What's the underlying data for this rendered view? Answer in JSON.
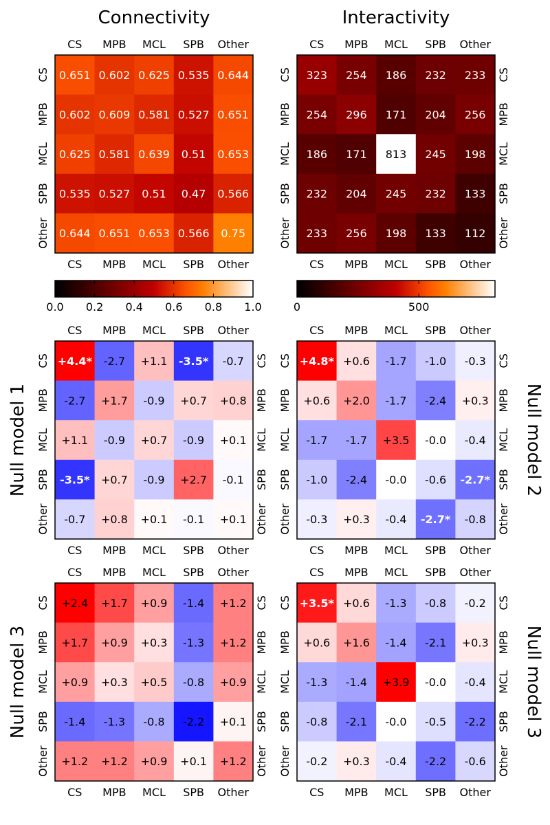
{
  "labels": {
    "connectivity_title": "Connectivity",
    "interactivity_title": "Interactivity",
    "null_model_1": "Null model 1",
    "null_model_2": "Null model 2",
    "null_model_3_left": "Null model 3",
    "null_model_3_right": "Null model 3"
  },
  "colors": {
    "positive": "#ff0000",
    "negative": "#0000ff",
    "neutral": "#ffffff",
    "text_dark": "#000000",
    "text_light": "#ffffff"
  },
  "chart_data": [
    {
      "id": "connectivity",
      "type": "heatmap",
      "title": "Connectivity",
      "colormap": "gist_heat",
      "categories": [
        "CS",
        "MPB",
        "MCL",
        "SPB",
        "Other"
      ],
      "values": [
        [
          0.651,
          0.602,
          0.625,
          0.535,
          0.644
        ],
        [
          0.602,
          0.609,
          0.581,
          0.527,
          0.651
        ],
        [
          0.625,
          0.581,
          0.639,
          0.51,
          0.653
        ],
        [
          0.535,
          0.527,
          0.51,
          0.47,
          0.566
        ],
        [
          0.644,
          0.651,
          0.653,
          0.566,
          0.75
        ]
      ],
      "labels": [
        [
          "0.651",
          "0.602",
          "0.625",
          "0.535",
          "0.644"
        ],
        [
          "0.602",
          "0.609",
          "0.581",
          "0.527",
          "0.651"
        ],
        [
          "0.625",
          "0.581",
          "0.639",
          "0.51",
          "0.653"
        ],
        [
          "0.535",
          "0.527",
          "0.51",
          "0.47",
          "0.566"
        ],
        [
          "0.644",
          "0.651",
          "0.653",
          "0.566",
          "0.75"
        ]
      ],
      "vmin": 0.0,
      "vmax": 1.0,
      "colorbar_ticks": [
        0.0,
        0.2,
        0.4,
        0.6,
        0.8,
        1.0
      ],
      "colorbar_tick_labels": [
        "0.0",
        "0.2",
        "0.4",
        "0.6",
        "0.8",
        "1.0"
      ]
    },
    {
      "id": "interactivity",
      "type": "heatmap",
      "title": "Interactivity",
      "colormap": "gist_heat",
      "categories": [
        "CS",
        "MPB",
        "MCL",
        "SPB",
        "Other"
      ],
      "values": [
        [
          323,
          254,
          186,
          232,
          233
        ],
        [
          254,
          296,
          171,
          204,
          256
        ],
        [
          186,
          171,
          813,
          245,
          198
        ],
        [
          232,
          204,
          245,
          232,
          133
        ],
        [
          233,
          256,
          198,
          133,
          112
        ]
      ],
      "labels": [
        [
          "323",
          "254",
          "186",
          "232",
          "233"
        ],
        [
          "254",
          "296",
          "171",
          "204",
          "256"
        ],
        [
          "186",
          "171",
          "813",
          "245",
          "198"
        ],
        [
          "232",
          "204",
          "245",
          "232",
          "133"
        ],
        [
          "233",
          "256",
          "198",
          "133",
          "112"
        ]
      ],
      "vmin": 0,
      "vmax": 813,
      "colorbar_ticks": [
        0,
        500
      ],
      "colorbar_tick_labels": [
        "0",
        "500"
      ]
    },
    {
      "id": "null1-connectivity",
      "type": "heatmap",
      "title": "Null model 1",
      "colormap": "bwr",
      "categories": [
        "CS",
        "MPB",
        "MCL",
        "SPB",
        "Other"
      ],
      "values": [
        [
          4.4,
          -2.7,
          1.1,
          -3.5,
          -0.7
        ],
        [
          -2.7,
          1.7,
          -0.9,
          0.7,
          0.8
        ],
        [
          1.1,
          -0.9,
          0.7,
          -0.9,
          0.1
        ],
        [
          -3.5,
          0.7,
          -0.9,
          2.7,
          -0.1
        ],
        [
          -0.7,
          0.8,
          0.1,
          -0.1,
          0.1
        ]
      ],
      "labels": [
        [
          "+4.4*",
          "-2.7",
          "+1.1",
          "-3.5*",
          "-0.7"
        ],
        [
          "-2.7",
          "+1.7",
          "-0.9",
          "+0.7",
          "+0.8"
        ],
        [
          "+1.1",
          "-0.9",
          "+0.7",
          "-0.9",
          "+0.1"
        ],
        [
          "-3.5*",
          "+0.7",
          "-0.9",
          "+2.7",
          "-0.1"
        ],
        [
          "-0.7",
          "+0.8",
          "+0.1",
          "-0.1",
          "+0.1"
        ]
      ],
      "vlim": 4.4
    },
    {
      "id": "null2-interactivity",
      "type": "heatmap",
      "title": "Null model 2",
      "colormap": "bwr",
      "categories": [
        "CS",
        "MPB",
        "MCL",
        "SPB",
        "Other"
      ],
      "values": [
        [
          4.8,
          0.6,
          -1.7,
          -1.0,
          -0.3
        ],
        [
          0.6,
          2.0,
          -1.7,
          -2.4,
          0.3
        ],
        [
          -1.7,
          -1.7,
          3.5,
          -0.0,
          -0.4
        ],
        [
          -1.0,
          -2.4,
          -0.0,
          -0.6,
          -2.7
        ],
        [
          -0.3,
          0.3,
          -0.4,
          -2.7,
          -0.8
        ]
      ],
      "labels": [
        [
          "+4.8*",
          "+0.6",
          "-1.7",
          "-1.0",
          "-0.3"
        ],
        [
          "+0.6",
          "+2.0",
          "-1.7",
          "-2.4",
          "+0.3"
        ],
        [
          "-1.7",
          "-1.7",
          "+3.5",
          "-0.0",
          "-0.4"
        ],
        [
          "-1.0",
          "-2.4",
          "-0.0",
          "-0.6",
          "-2.7*"
        ],
        [
          "-0.3",
          "+0.3",
          "-0.4",
          "-2.7*",
          "-0.8"
        ]
      ],
      "vlim": 4.8
    },
    {
      "id": "null3-connectivity",
      "type": "heatmap",
      "title": "Null model 3",
      "colormap": "bwr",
      "categories": [
        "CS",
        "MPB",
        "MCL",
        "SPB",
        "Other"
      ],
      "values": [
        [
          2.4,
          1.7,
          0.9,
          -1.4,
          1.2
        ],
        [
          1.7,
          0.9,
          0.3,
          -1.3,
          1.2
        ],
        [
          0.9,
          0.3,
          0.5,
          -0.8,
          0.9
        ],
        [
          -1.4,
          -1.3,
          -0.8,
          -2.2,
          0.1
        ],
        [
          1.2,
          1.2,
          0.9,
          0.1,
          1.2
        ]
      ],
      "labels": [
        [
          "+2.4",
          "+1.7",
          "+0.9",
          "-1.4",
          "+1.2"
        ],
        [
          "+1.7",
          "+0.9",
          "+0.3",
          "-1.3",
          "+1.2"
        ],
        [
          "+0.9",
          "+0.3",
          "+0.5",
          "-0.8",
          "+0.9"
        ],
        [
          "-1.4",
          "-1.3",
          "-0.8",
          "-2.2",
          "+0.1"
        ],
        [
          "+1.2",
          "+1.2",
          "+0.9",
          "+0.1",
          "+1.2"
        ]
      ],
      "vlim": 2.4
    },
    {
      "id": "null3-interactivity",
      "type": "heatmap",
      "title": "Null model 3",
      "colormap": "bwr",
      "categories": [
        "CS",
        "MPB",
        "MCL",
        "SPB",
        "Other"
      ],
      "values": [
        [
          3.5,
          0.6,
          -1.3,
          -0.8,
          -0.2
        ],
        [
          0.6,
          1.6,
          -1.4,
          -2.1,
          0.3
        ],
        [
          -1.3,
          -1.4,
          3.9,
          -0.0,
          -0.4
        ],
        [
          -0.8,
          -2.1,
          -0.0,
          -0.5,
          -2.2
        ],
        [
          -0.2,
          0.3,
          -0.4,
          -2.2,
          -0.6
        ]
      ],
      "labels": [
        [
          "+3.5*",
          "+0.6",
          "-1.3",
          "-0.8",
          "-0.2"
        ],
        [
          "+0.6",
          "+1.6",
          "-1.4",
          "-2.1",
          "+0.3"
        ],
        [
          "-1.3",
          "-1.4",
          "+3.9",
          "-0.0",
          "-0.4"
        ],
        [
          "-0.8",
          "-2.1",
          "-0.0",
          "-0.5",
          "-2.2"
        ],
        [
          "-0.2",
          "+0.3",
          "-0.4",
          "-2.2",
          "-0.6"
        ]
      ],
      "vlim": 3.9
    }
  ]
}
